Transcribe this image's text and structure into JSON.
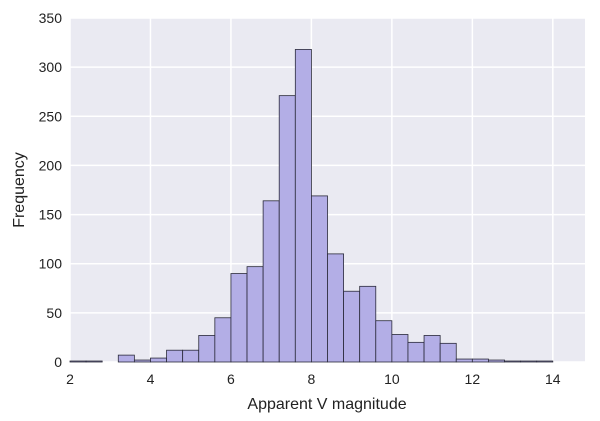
{
  "chart_data": {
    "type": "bar",
    "subtype": "histogram",
    "xlabel": "Apparent V magnitude",
    "ylabel": "Frequency",
    "xlim": [
      2,
      14.8
    ],
    "ylim": [
      0,
      350
    ],
    "xticks": [
      2,
      4,
      6,
      8,
      10,
      12,
      14
    ],
    "yticks": [
      0,
      50,
      100,
      150,
      200,
      250,
      300,
      350
    ],
    "grid": true,
    "bin_edges": [
      2.0,
      2.4,
      2.8,
      3.2,
      3.6,
      4.0,
      4.4,
      4.8,
      5.2,
      5.6,
      6.0,
      6.4,
      6.8,
      7.2,
      7.6,
      8.0,
      8.4,
      8.8,
      9.2,
      9.6,
      10.0,
      10.4,
      10.8,
      11.2,
      11.6,
      12.0,
      12.4,
      12.8,
      13.2,
      13.6,
      14.0,
      14.4
    ],
    "counts": [
      1,
      1,
      0,
      7,
      2,
      4,
      12,
      12,
      27,
      45,
      90,
      97,
      164,
      271,
      318,
      169,
      110,
      72,
      77,
      42,
      28,
      20,
      27,
      19,
      3,
      3,
      2,
      1,
      1,
      1,
      0
    ],
    "colors": {
      "bar_fill": "#b3aee6",
      "bar_edge": "#2a2a3a",
      "plot_bg": "#eaeaf2",
      "grid": "#ffffff",
      "text": "#222222"
    }
  }
}
